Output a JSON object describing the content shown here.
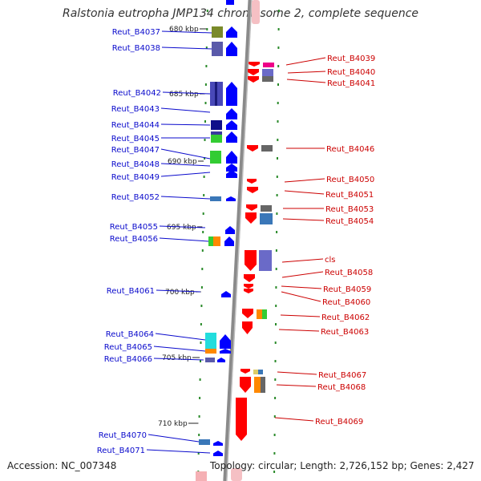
{
  "title": "Ralstonia eutropha JMP134 chromosome 2, complete sequence",
  "footer": {
    "accession": "Accession: NC_007348",
    "topology": "Topology: circular; Length: 2,726,152 bp; Genes: 2,427"
  },
  "colors": {
    "left_label": "#0a0acc",
    "right_label": "#cc0000",
    "backbone": "#8a8a8a",
    "tick": "#2a8a2a",
    "forward_gene": "#0000ff",
    "reverse_gene": "#ff0000"
  },
  "scale_labels": [
    "680 kbp",
    "685 kbp",
    "690 kbp",
    "695 kbp",
    "700 kbp",
    "705 kbp",
    "710 kbp"
  ],
  "left_genes": [
    "Reut_B4037",
    "Reut_B4038",
    "Reut_B4042",
    "Reut_B4043",
    "Reut_B4044",
    "Reut_B4045",
    "Reut_B4047",
    "Reut_B4048",
    "Reut_B4049",
    "Reut_B4052",
    "Reut_B4055",
    "Reut_B4056",
    "Reut_B4061",
    "Reut_B4064",
    "Reut_B4065",
    "Reut_B4066",
    "Reut_B4070",
    "Reut_B4071"
  ],
  "right_genes": [
    "Reut_B4039",
    "Reut_B4040",
    "Reut_B4041",
    "Reut_B4046",
    "Reut_B4050",
    "Reut_B4051",
    "Reut_B4053",
    "Reut_B4054",
    "cls",
    "Reut_B4058",
    "Reut_B4059",
    "Reut_B4060",
    "Reut_B4062",
    "Reut_B4063",
    "Reut_B4067",
    "Reut_B4068",
    "Reut_B4069"
  ]
}
